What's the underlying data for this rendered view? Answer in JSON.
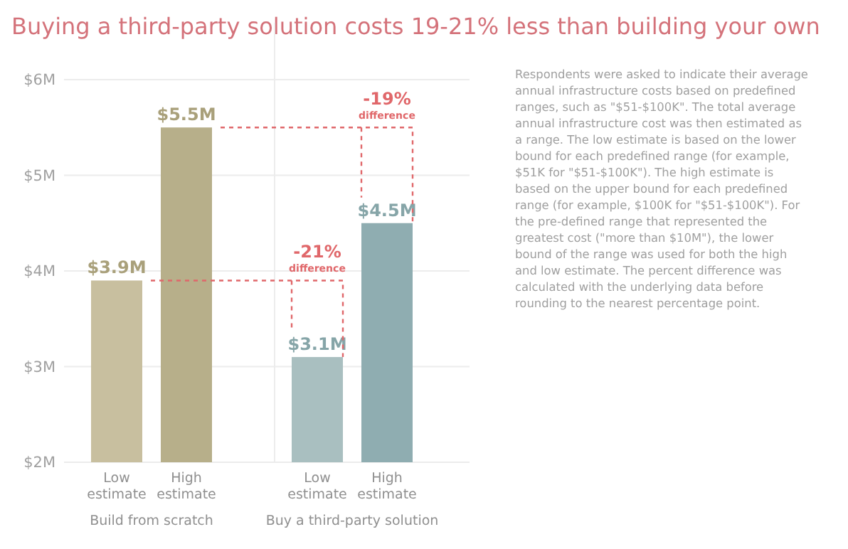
{
  "chart_data": {
    "type": "bar",
    "title": "Buying a third-party solution costs 19-21% less than building your own",
    "categories": [
      "Low estimate",
      "High estimate",
      "Low estimate",
      "High estimate"
    ],
    "values": [
      3.9,
      5.5,
      3.1,
      4.5
    ],
    "colors": [
      "#c8bf9f",
      "#b7af8a",
      "#a9bfc0",
      "#8fadb1"
    ],
    "value_labels": [
      "$3.9M",
      "$5.5M",
      "$3.1M",
      "$4.5M"
    ],
    "ylim": [
      2,
      6
    ],
    "yticks": [
      {
        "value": 2,
        "label": "$2M"
      },
      {
        "value": 3,
        "label": "$3M"
      },
      {
        "value": 4,
        "label": "$4M"
      },
      {
        "value": 5,
        "label": "$5M"
      },
      {
        "value": 6,
        "label": "$6M"
      }
    ],
    "grid": "y",
    "annotations": [
      "-21% difference",
      "-19% difference",
      "Build from scratch",
      "Buy a third-party solution",
      "Respondents were asked to indicate their average annual infrastructure costs based on predefined ranges, such as \"$51-$100K\". The total average annual infrastructure cost was then estimated as a range. The low estimate is based on the lower bound for each predefined range (for example, $51K for \"$51-$100K\"). The high estimate is based on the upper bound for each predefined range (for example, $100K for \"$51-$100K\"). For the pre-defined range that represented the greatest cost (\"more than $10M\"), the lower bound of the range was used for both the high and low estimate. The percent difference was calculated with the underlying data before rounding to the nearest percentage point."
    ]
  }
}
